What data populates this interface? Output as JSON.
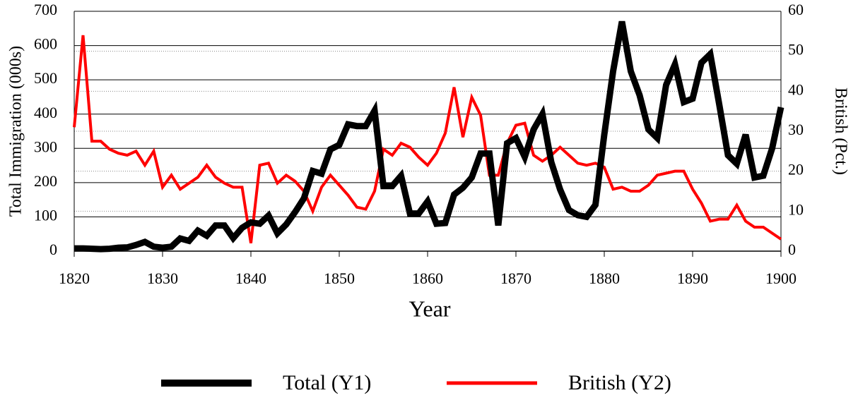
{
  "chart_data": {
    "type": "line",
    "x_label": "Year",
    "y_label": "Total Immigration (000s)",
    "y2_label": "British (Pct.)",
    "x": [
      1820,
      1821,
      1822,
      1823,
      1824,
      1825,
      1826,
      1827,
      1828,
      1829,
      1830,
      1831,
      1832,
      1833,
      1834,
      1835,
      1836,
      1837,
      1838,
      1839,
      1840,
      1841,
      1842,
      1843,
      1844,
      1845,
      1846,
      1847,
      1848,
      1849,
      1850,
      1851,
      1852,
      1853,
      1854,
      1855,
      1856,
      1857,
      1858,
      1859,
      1860,
      1861,
      1862,
      1863,
      1864,
      1865,
      1866,
      1867,
      1868,
      1869,
      1870,
      1871,
      1872,
      1873,
      1874,
      1875,
      1876,
      1877,
      1878,
      1879,
      1880,
      1881,
      1882,
      1883,
      1884,
      1885,
      1886,
      1887,
      1888,
      1889,
      1890,
      1891,
      1892,
      1893,
      1894,
      1895,
      1896,
      1897,
      1898,
      1899,
      1900
    ],
    "series": [
      {
        "name": "Total (Y1)",
        "color": "#000000",
        "axis": "y",
        "values": [
          8,
          8,
          7,
          6,
          7,
          10,
          11,
          18,
          27,
          13,
          10,
          13,
          37,
          30,
          60,
          45,
          75,
          75,
          38,
          68,
          84,
          80,
          104,
          52,
          78,
          114,
          154,
          234,
          226,
          297,
          310,
          370,
          365,
          365,
          410,
          190,
          190,
          220,
          110,
          110,
          145,
          80,
          82,
          165,
          185,
          215,
          285,
          285,
          75,
          315,
          330,
          275,
          355,
          400,
          260,
          180,
          120,
          105,
          100,
          135,
          340,
          525,
          670,
          525,
          455,
          355,
          330,
          485,
          545,
          435,
          445,
          550,
          575,
          430,
          280,
          255,
          340,
          215,
          220,
          300,
          420
        ]
      },
      {
        "name": "British (Y2)",
        "color": "#ff0000",
        "axis": "y2",
        "values": [
          31,
          54,
          27.5,
          27.5,
          25.5,
          24.5,
          24,
          25,
          21.5,
          25,
          16,
          19,
          15.5,
          17,
          18.5,
          21.5,
          18.5,
          17,
          16,
          16,
          2,
          21.5,
          22,
          17,
          19,
          17.5,
          15,
          10,
          16,
          19,
          16.5,
          14,
          11,
          10.5,
          15,
          25.5,
          24,
          27,
          26,
          23.5,
          21.5,
          24.5,
          29.5,
          41,
          28.5,
          38.5,
          34,
          19,
          19,
          27,
          31.5,
          32,
          24,
          22.5,
          24,
          26,
          24,
          22,
          21.5,
          22,
          21,
          15.5,
          16,
          15,
          15,
          16.5,
          19,
          19.5,
          20,
          20,
          15.5,
          12,
          7.5,
          8,
          8,
          11.5,
          7.5,
          6,
          6,
          4.5,
          3
        ]
      }
    ],
    "xlim": [
      1820,
      1900
    ],
    "xticks": [
      1820,
      1830,
      1840,
      1850,
      1860,
      1870,
      1880,
      1890,
      1900
    ],
    "ylim": [
      0,
      700
    ],
    "yticks": [
      0,
      100,
      200,
      300,
      400,
      500,
      600,
      700
    ],
    "y2lim": [
      0,
      60
    ],
    "y2ticks": [
      0,
      10,
      20,
      30,
      40,
      50,
      60
    ],
    "grid": true,
    "legend": "bottom"
  }
}
